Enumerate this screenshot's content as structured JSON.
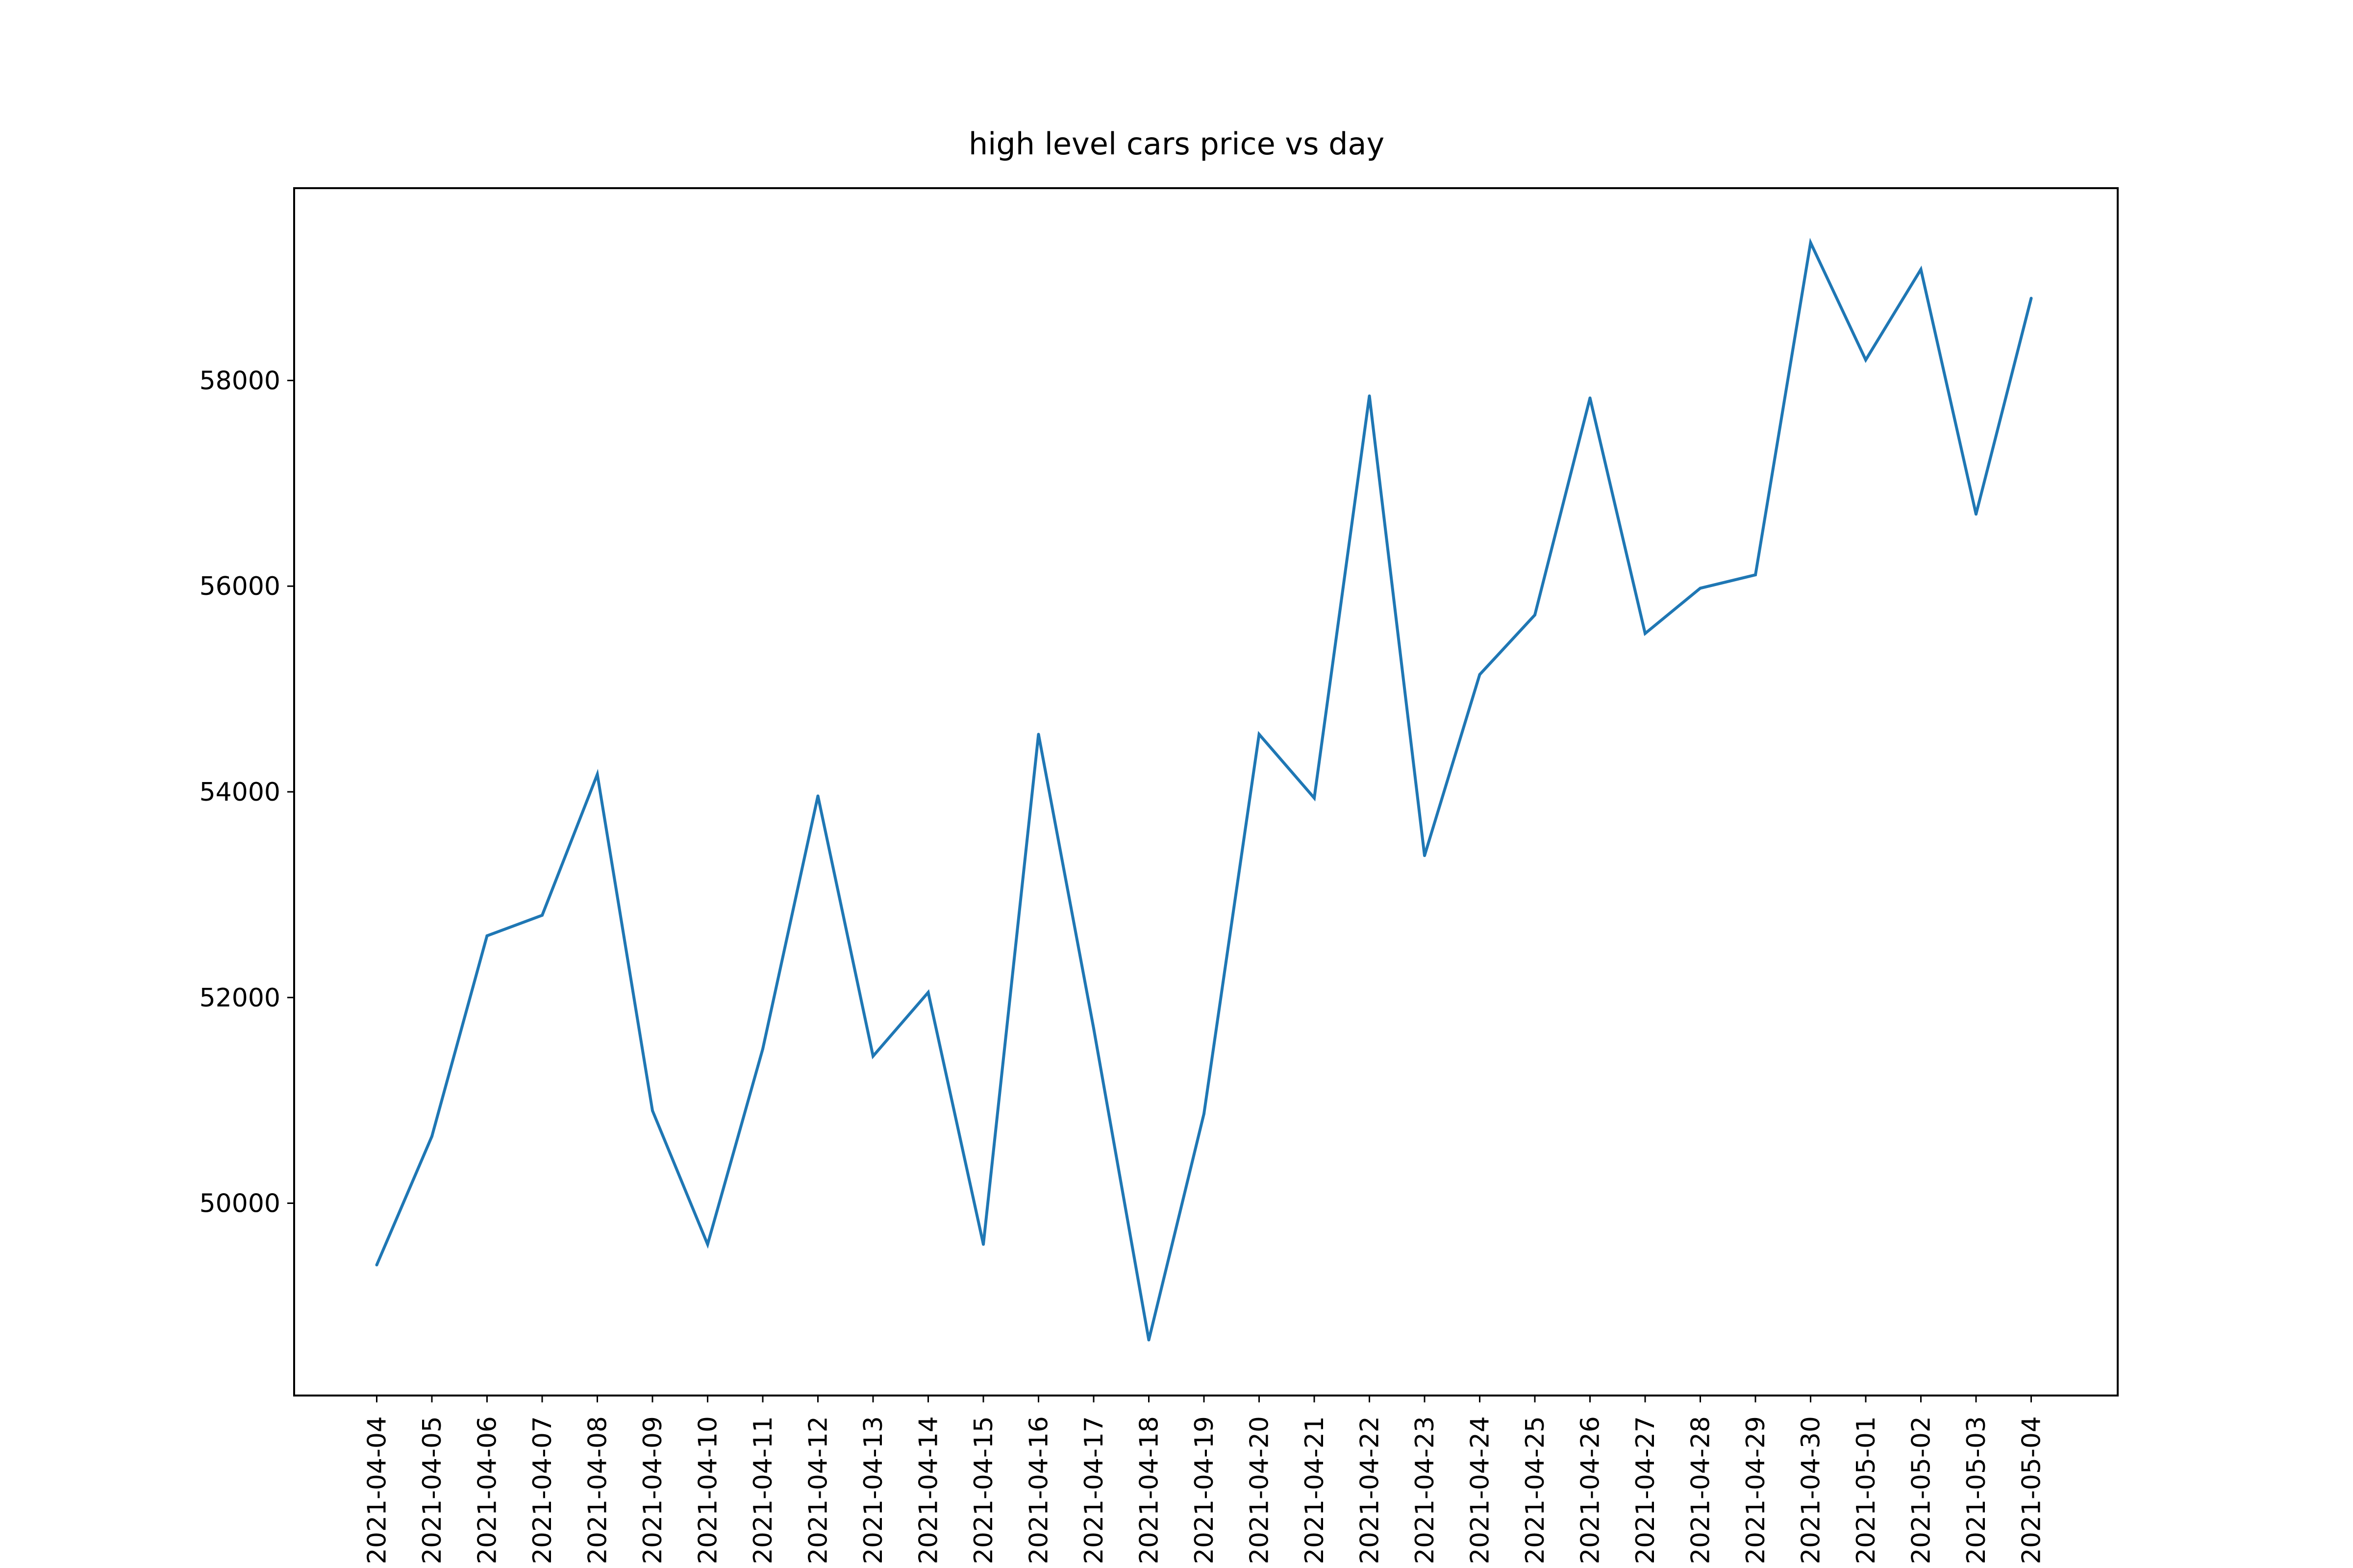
{
  "chart_data": {
    "type": "line",
    "title": "high level cars price vs day",
    "xlabel": "",
    "ylabel": "",
    "x": [
      "2021-04-04",
      "2021-04-05",
      "2021-04-06",
      "2021-04-07",
      "2021-04-08",
      "2021-04-09",
      "2021-04-10",
      "2021-04-11",
      "2021-04-12",
      "2021-04-13",
      "2021-04-14",
      "2021-04-15",
      "2021-04-16",
      "2021-04-17",
      "2021-04-18",
      "2021-04-19",
      "2021-04-20",
      "2021-04-21",
      "2021-04-22",
      "2021-04-23",
      "2021-04-24",
      "2021-04-25",
      "2021-04-26",
      "2021-04-27",
      "2021-04-28",
      "2021-04-29",
      "2021-04-30",
      "2021-05-01",
      "2021-05-02",
      "2021-05-03",
      "2021-05-04"
    ],
    "series": [
      {
        "values": [
          49400,
          50650,
          52600,
          52800,
          54170,
          50900,
          49600,
          51500,
          53960,
          51430,
          52050,
          49600,
          54560,
          51700,
          48670,
          50870,
          54560,
          53940,
          57850,
          53380,
          55140,
          55720,
          57830,
          55540,
          55980,
          56110,
          59340,
          58200,
          59080,
          56700,
          58800
        ],
        "color": "#1f77b4"
      }
    ],
    "yticks": [
      50000,
      52000,
      54000,
      56000,
      58000
    ],
    "ylim": [
      48130,
      59870
    ],
    "grid": false,
    "legend": "none"
  }
}
